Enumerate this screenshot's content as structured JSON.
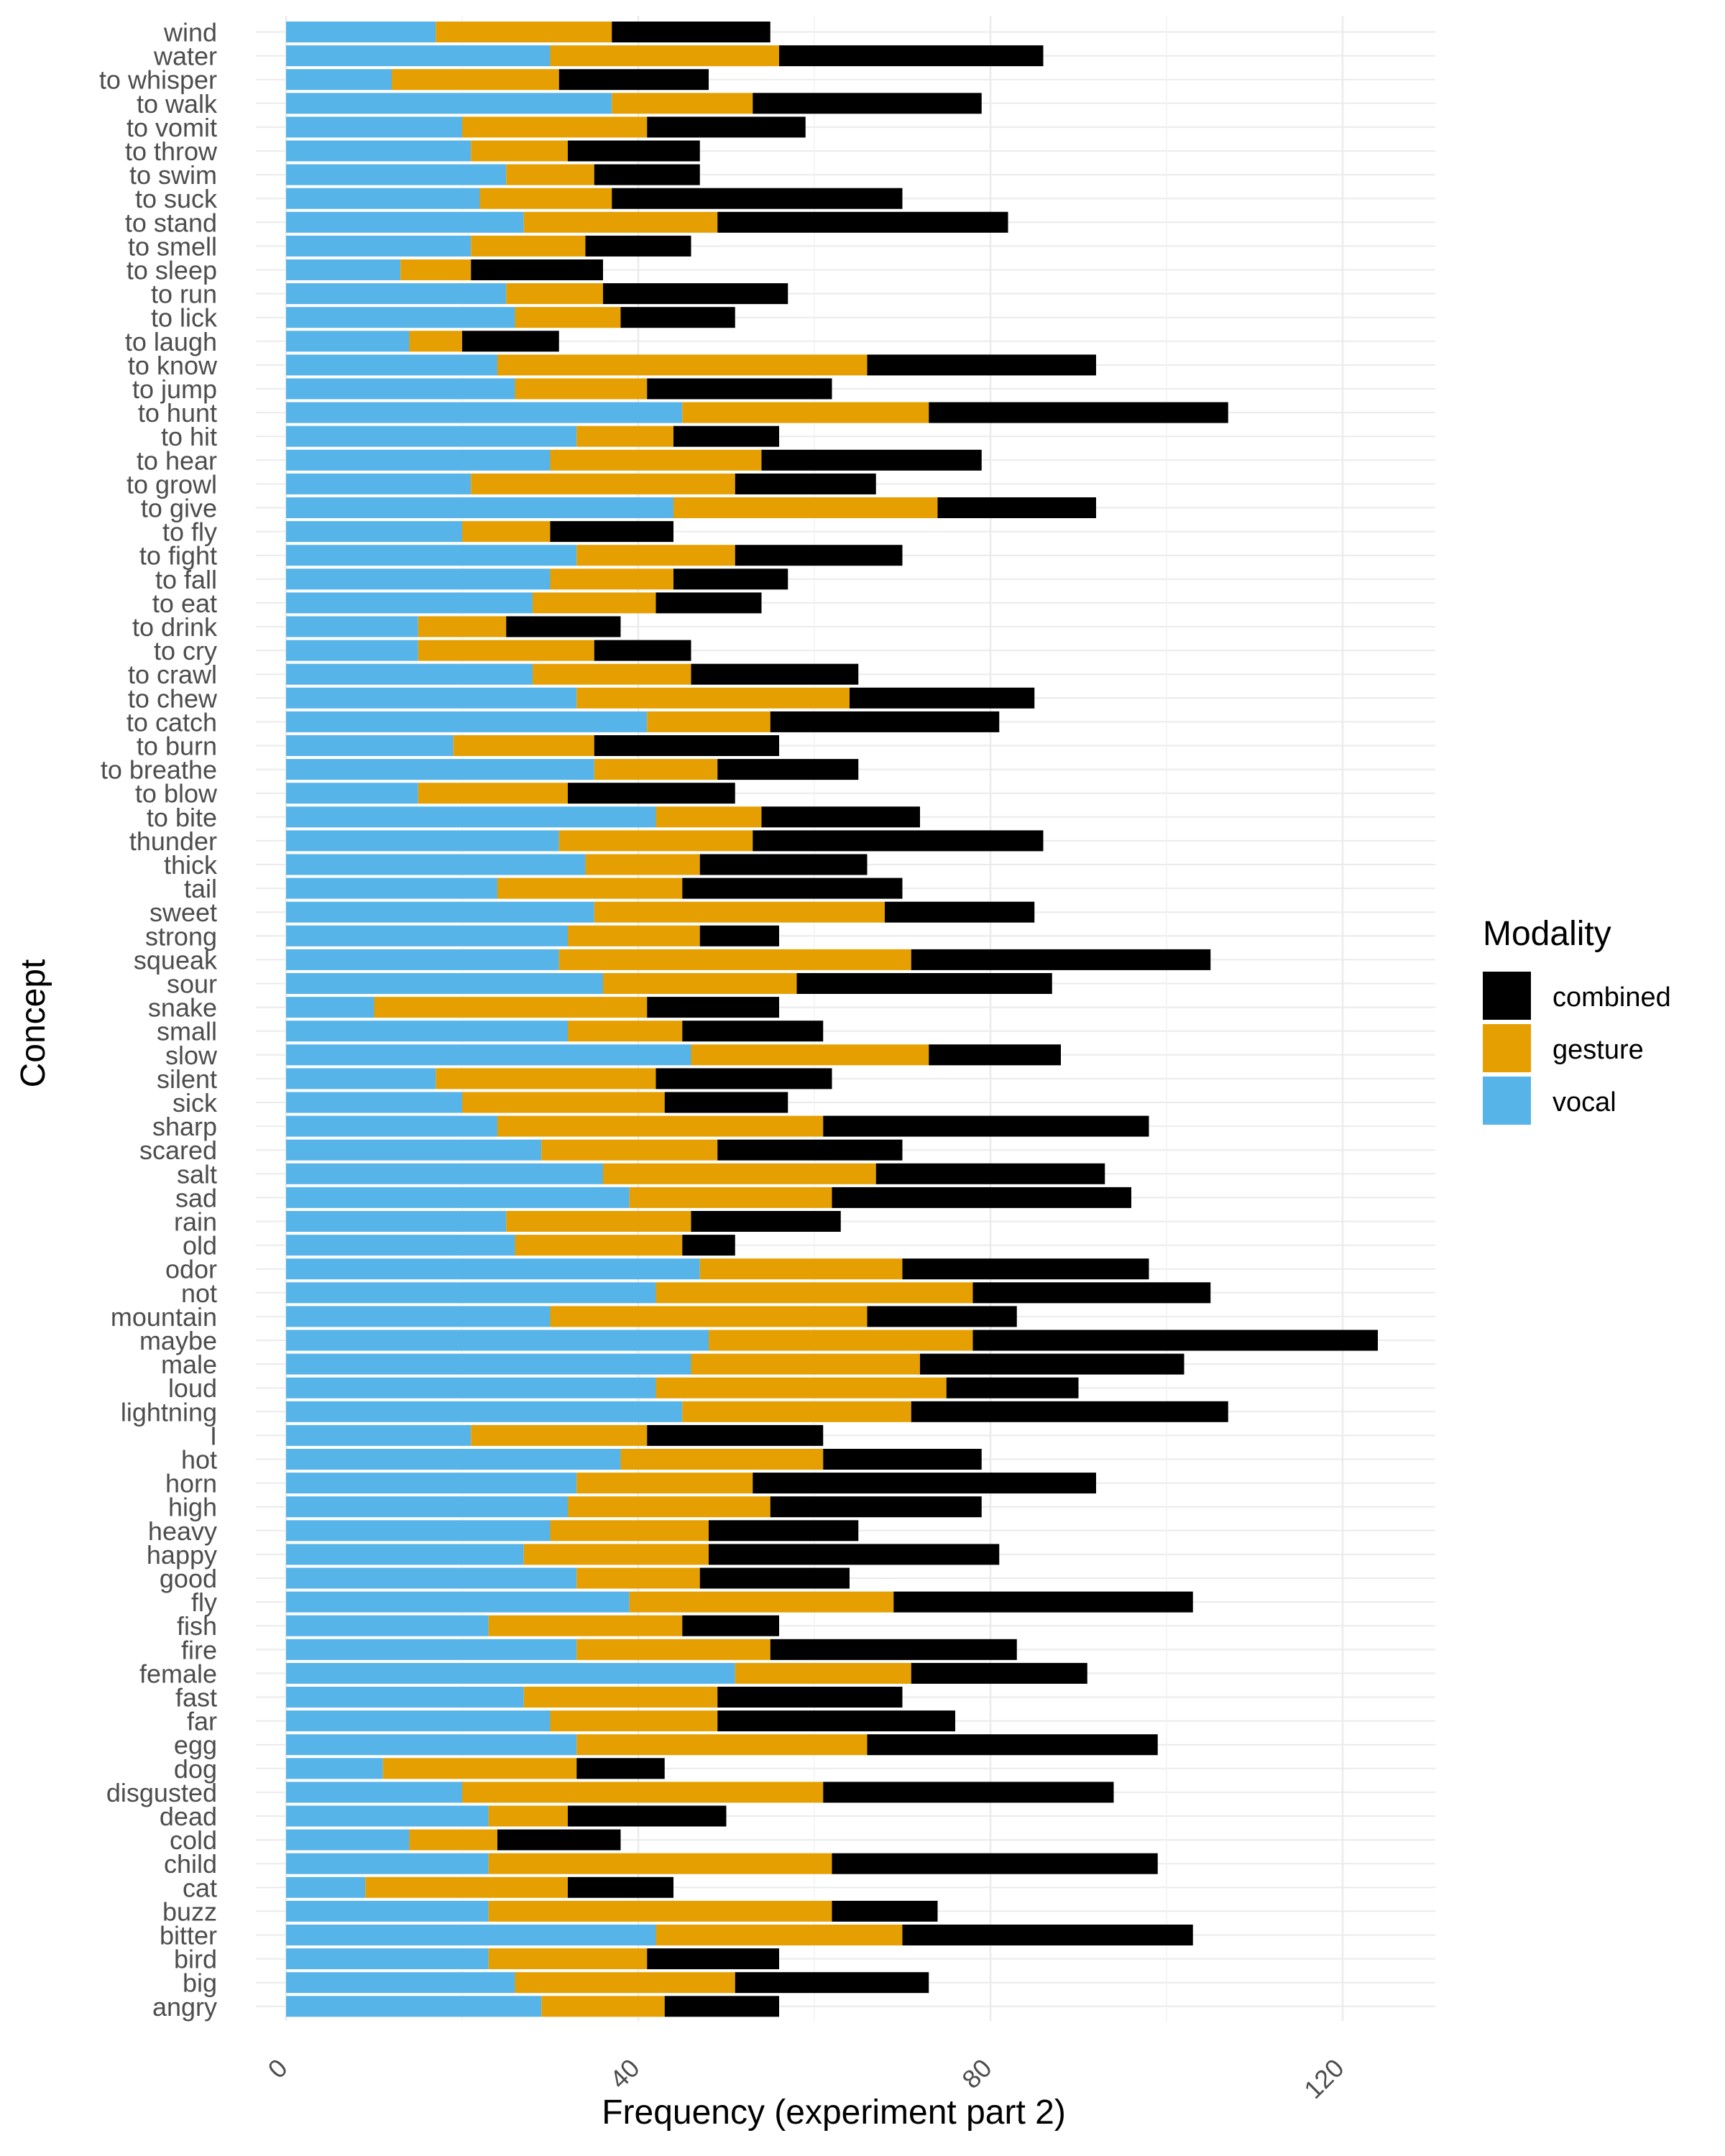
{
  "chart_data": {
    "type": "bar",
    "orientation": "horizontal",
    "stacked": true,
    "xlabel": "Frequency (experiment part 2)",
    "ylabel": "Concept",
    "xlim": [
      0,
      130
    ],
    "xticks": [
      0,
      40,
      80,
      120
    ],
    "xtick_labels": [
      "0",
      "40",
      "80",
      "120"
    ],
    "grid": true,
    "legend": {
      "title": "Modality",
      "placement": "right",
      "entries": [
        "combined",
        "gesture",
        "vocal"
      ]
    },
    "colors": {
      "vocal": "#56B4E9",
      "gesture": "#E69F00",
      "combined": "#000000"
    },
    "categories": [
      "wind",
      "water",
      "to whisper",
      "to walk",
      "to vomit",
      "to throw",
      "to swim",
      "to suck",
      "to stand",
      "to smell",
      "to sleep",
      "to run",
      "to lick",
      "to laugh",
      "to know",
      "to jump",
      "to hunt",
      "to hit",
      "to hear",
      "to growl",
      "to give",
      "to fly",
      "to fight",
      "to fall",
      "to eat",
      "to drink",
      "to cry",
      "to crawl",
      "to chew",
      "to catch",
      "to burn",
      "to breathe",
      "to blow",
      "to bite",
      "thunder",
      "thick",
      "tail",
      "sweet",
      "strong",
      "squeak",
      "sour",
      "snake",
      "small",
      "slow",
      "silent",
      "sick",
      "sharp",
      "scared",
      "salt",
      "sad",
      "rain",
      "old",
      "odor",
      "not",
      "mountain",
      "maybe",
      "male",
      "loud",
      "lightning",
      "I",
      "hot",
      "horn",
      "high",
      "heavy",
      "happy",
      "good",
      "fly",
      "fish",
      "fire",
      "female",
      "fast",
      "far",
      "egg",
      "dog",
      "disgusted",
      "dead",
      "cold",
      "child",
      "cat",
      "buzz",
      "bitter",
      "bird",
      "big",
      "angry"
    ],
    "series": [
      {
        "name": "vocal",
        "values": [
          17,
          30,
          12,
          37,
          20,
          21,
          25,
          22,
          27,
          21,
          13,
          25,
          26,
          14,
          24,
          26,
          45,
          33,
          30,
          21,
          44,
          20,
          33,
          30,
          28,
          15,
          15,
          28,
          33,
          41,
          19,
          35,
          15,
          42,
          31,
          34,
          24,
          35,
          32,
          31,
          36,
          10,
          32,
          46,
          17,
          20,
          24,
          29,
          36,
          39,
          25,
          26,
          47,
          42,
          30,
          48,
          46,
          42,
          45,
          21,
          38,
          33,
          32,
          30,
          27,
          33,
          39,
          23,
          33,
          51,
          27,
          30,
          33,
          11,
          20,
          23,
          14,
          23,
          9,
          23,
          42,
          23,
          26,
          29
        ]
      },
      {
        "name": "gesture",
        "values": [
          20,
          26,
          19,
          16,
          21,
          11,
          10,
          15,
          22,
          13,
          8,
          11,
          12,
          6,
          42,
          15,
          28,
          11,
          24,
          30,
          30,
          10,
          18,
          14,
          14,
          10,
          20,
          18,
          31,
          14,
          16,
          14,
          17,
          12,
          22,
          13,
          21,
          33,
          15,
          40,
          22,
          31,
          13,
          27,
          25,
          23,
          37,
          20,
          31,
          23,
          21,
          19,
          23,
          36,
          36,
          30,
          26,
          33,
          26,
          20,
          23,
          20,
          23,
          18,
          21,
          14,
          30,
          22,
          22,
          20,
          22,
          19,
          33,
          22,
          41,
          9,
          10,
          39,
          23,
          39,
          28,
          18,
          25,
          14
        ]
      },
      {
        "name": "combined",
        "values": [
          18,
          30,
          17,
          26,
          18,
          15,
          12,
          33,
          33,
          12,
          15,
          21,
          13,
          11,
          26,
          21,
          34,
          12,
          25,
          16,
          18,
          14,
          19,
          13,
          12,
          13,
          11,
          19,
          21,
          26,
          21,
          16,
          19,
          18,
          33,
          19,
          25,
          17,
          9,
          34,
          29,
          15,
          16,
          15,
          20,
          14,
          37,
          21,
          26,
          34,
          17,
          6,
          28,
          27,
          17,
          46,
          30,
          15,
          36,
          20,
          18,
          39,
          24,
          17,
          33,
          17,
          34,
          11,
          28,
          20,
          21,
          27,
          33,
          10,
          33,
          18,
          14,
          37,
          12,
          12,
          33,
          15,
          22,
          13
        ]
      }
    ]
  }
}
